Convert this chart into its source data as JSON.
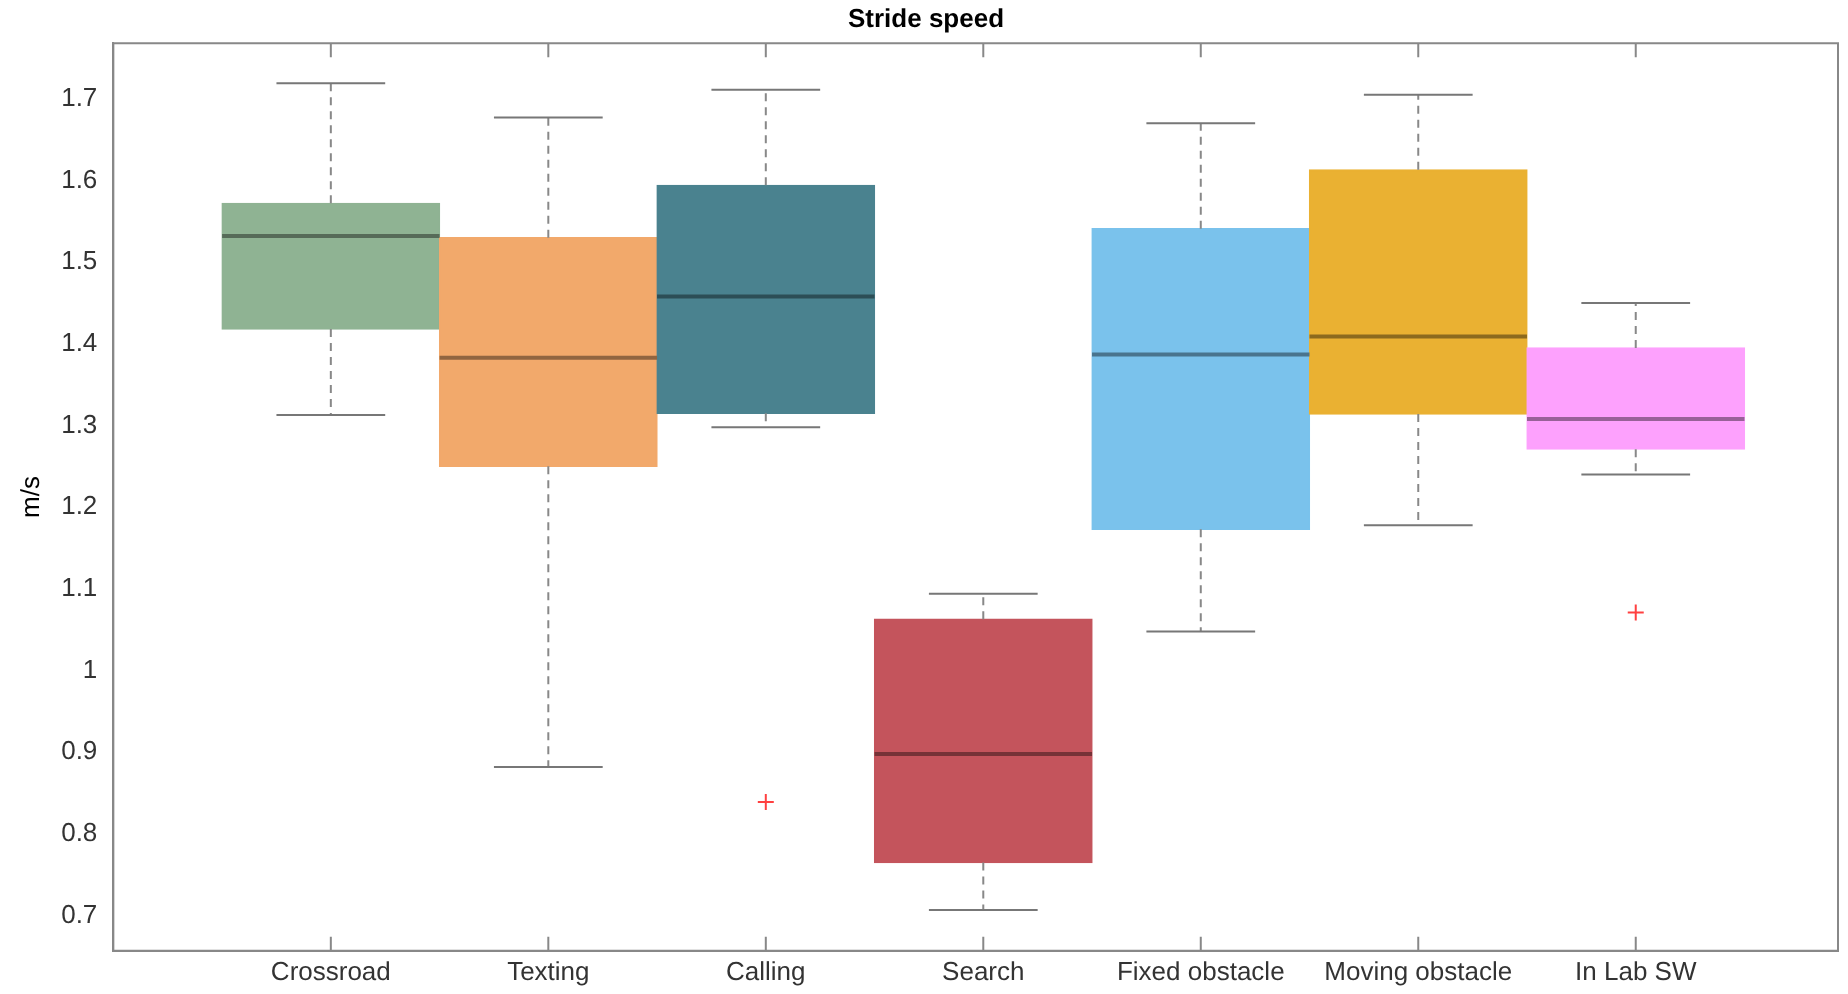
{
  "chart_data": {
    "type": "box",
    "title": "Stride speed",
    "ylabel": "m/s",
    "categories": [
      "Crossroad",
      "Texting",
      "Calling",
      "Search",
      "Fixed obstacle",
      "Moving obstacle",
      "In Lab SW"
    ],
    "colors": [
      "#8fb393",
      "#f2a96b",
      "#4a828f",
      "#c4545c",
      "#7ac2ec",
      "#eab132",
      "#fda1fd"
    ],
    "boxes": [
      {
        "low": 1.313,
        "q1": 1.418,
        "median": 1.532,
        "q3": 1.572,
        "high": 1.719
      },
      {
        "low": 0.882,
        "q1": 1.25,
        "median": 1.383,
        "q3": 1.53,
        "high": 1.677
      },
      {
        "low": 1.298,
        "q1": 1.315,
        "median": 1.458,
        "q3": 1.594,
        "high": 1.711,
        "outliers": [
          0.839
        ]
      },
      {
        "low": 0.707,
        "q1": 0.765,
        "median": 0.898,
        "q3": 1.063,
        "high": 1.094
      },
      {
        "low": 1.048,
        "q1": 1.173,
        "median": 1.387,
        "q3": 1.541,
        "high": 1.67
      },
      {
        "low": 1.178,
        "q1": 1.314,
        "median": 1.409,
        "q3": 1.613,
        "high": 1.705
      },
      {
        "low": 1.24,
        "q1": 1.271,
        "median": 1.308,
        "q3": 1.395,
        "high": 1.45,
        "outliers": [
          1.071
        ]
      }
    ],
    "ylim": [
      0.657,
      1.768
    ],
    "yticks": [
      0.7,
      0.8,
      0.9,
      1,
      1.1,
      1.2,
      1.3,
      1.4,
      1.5,
      1.6,
      1.7
    ],
    "grid": false,
    "legend": false
  }
}
